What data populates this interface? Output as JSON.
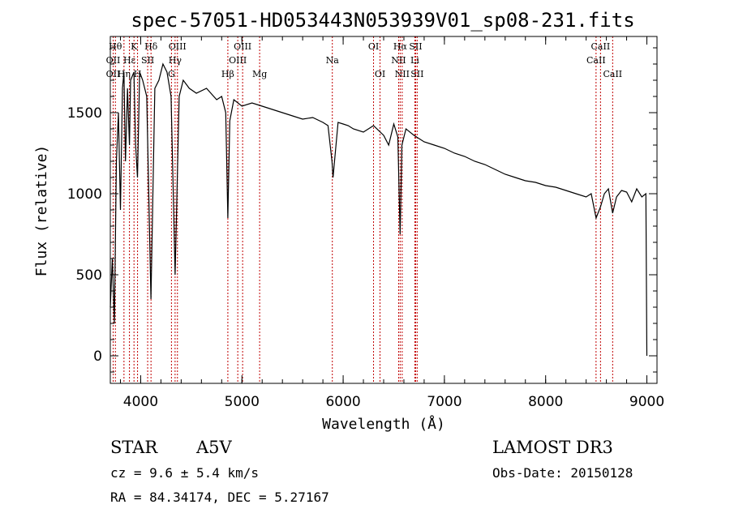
{
  "chart_data": {
    "type": "line",
    "title": "spec-57051-HD053443N053939V01_sp08-231.fits",
    "xlabel": "Wavelength (Å)",
    "ylabel": "Flux (relative)",
    "xlim": [
      3700,
      9100
    ],
    "ylim": [
      -170,
      1970
    ],
    "xticks": [
      4000,
      5000,
      6000,
      7000,
      8000,
      9000
    ],
    "yticks": [
      0,
      500,
      1000,
      1500
    ],
    "spectrum": {
      "x": [
        3700,
        3720,
        3740,
        3760,
        3780,
        3800,
        3820,
        3835,
        3850,
        3870,
        3889,
        3900,
        3933,
        3950,
        3968,
        3990,
        4020,
        4060,
        4101,
        4140,
        4180,
        4220,
        4260,
        4300,
        4340,
        4380,
        4420,
        4480,
        4550,
        4650,
        4750,
        4800,
        4840,
        4861,
        4880,
        4920,
        5000,
        5100,
        5200,
        5300,
        5400,
        5500,
        5600,
        5700,
        5800,
        5850,
        5890,
        5900,
        5950,
        6000,
        6050,
        6100,
        6200,
        6300,
        6400,
        6450,
        6500,
        6540,
        6563,
        6580,
        6620,
        6700,
        6800,
        6900,
        7000,
        7100,
        7200,
        7300,
        7400,
        7500,
        7600,
        7700,
        7800,
        7900,
        8000,
        8100,
        8200,
        8300,
        8400,
        8450,
        8498,
        8542,
        8580,
        8620,
        8662,
        8700,
        8750,
        8800,
        8850,
        8900,
        8950,
        8990,
        9000
      ],
      "y": [
        300,
        600,
        200,
        1200,
        1500,
        900,
        1650,
        1750,
        1200,
        1650,
        1300,
        1700,
        1750,
        1300,
        1100,
        1750,
        1700,
        1600,
        350,
        1650,
        1700,
        1800,
        1750,
        1600,
        500,
        1600,
        1700,
        1650,
        1620,
        1650,
        1580,
        1600,
        1500,
        850,
        1450,
        1580,
        1540,
        1560,
        1540,
        1520,
        1500,
        1480,
        1460,
        1470,
        1440,
        1420,
        1200,
        1100,
        1440,
        1430,
        1420,
        1400,
        1380,
        1420,
        1360,
        1300,
        1430,
        1350,
        750,
        1300,
        1400,
        1360,
        1320,
        1300,
        1280,
        1250,
        1230,
        1200,
        1180,
        1150,
        1120,
        1100,
        1080,
        1070,
        1050,
        1040,
        1020,
        1000,
        980,
        1000,
        850,
        920,
        1000,
        1030,
        880,
        980,
        1020,
        1010,
        950,
        1030,
        980,
        1000,
        0
      ]
    },
    "lines": [
      {
        "label": "Hθ",
        "x": 3750,
        "row": 1
      },
      {
        "label": "OII",
        "x": 3728,
        "row": 2
      },
      {
        "label": "OII",
        "x": 3728,
        "row": 3
      },
      {
        "label": "K",
        "x": 3934,
        "row": 1
      },
      {
        "label": "Hη",
        "x": 3835,
        "row": 3
      },
      {
        "label": "Hε",
        "x": 3889,
        "row": 2
      },
      {
        "label": "H",
        "x": 3969,
        "row": 3
      },
      {
        "label": "SII",
        "x": 4069,
        "row": 2
      },
      {
        "label": "Hδ",
        "x": 4102,
        "row": 1
      },
      {
        "label": "OIII",
        "x": 4363,
        "row": 1
      },
      {
        "label": "Hγ",
        "x": 4340,
        "row": 2
      },
      {
        "label": "G",
        "x": 4304,
        "row": 3
      },
      {
        "label": "Hβ",
        "x": 4861,
        "row": 3
      },
      {
        "label": "OIII",
        "x": 5007,
        "row": 1
      },
      {
        "label": "OIII",
        "x": 4959,
        "row": 2
      },
      {
        "label": "Mg",
        "x": 5175,
        "row": 3
      },
      {
        "label": "Na",
        "x": 5893,
        "row": 2
      },
      {
        "label": "OI",
        "x": 6300,
        "row": 1
      },
      {
        "label": "OI",
        "x": 6364,
        "row": 3
      },
      {
        "label": "Hα",
        "x": 6563,
        "row": 1
      },
      {
        "label": "SII",
        "x": 6716,
        "row": 1
      },
      {
        "label": "NII",
        "x": 6548,
        "row": 2
      },
      {
        "label": "Li",
        "x": 6708,
        "row": 2
      },
      {
        "label": "NII",
        "x": 6583,
        "row": 3
      },
      {
        "label": "SII",
        "x": 6731,
        "row": 3
      },
      {
        "label": "CaII",
        "x": 8542,
        "row": 1
      },
      {
        "label": "CaII",
        "x": 8498,
        "row": 2
      },
      {
        "label": "CaII",
        "x": 8662,
        "row": 3
      }
    ]
  },
  "info": {
    "object_class": "STAR",
    "subclass": "A5V",
    "survey": "LAMOST DR3",
    "cz": "cz = 9.6 ± 5.4 km/s",
    "obs_date": "Obs-Date: 20150128",
    "coords": "RA =  84.34174, DEC =   5.27167"
  }
}
